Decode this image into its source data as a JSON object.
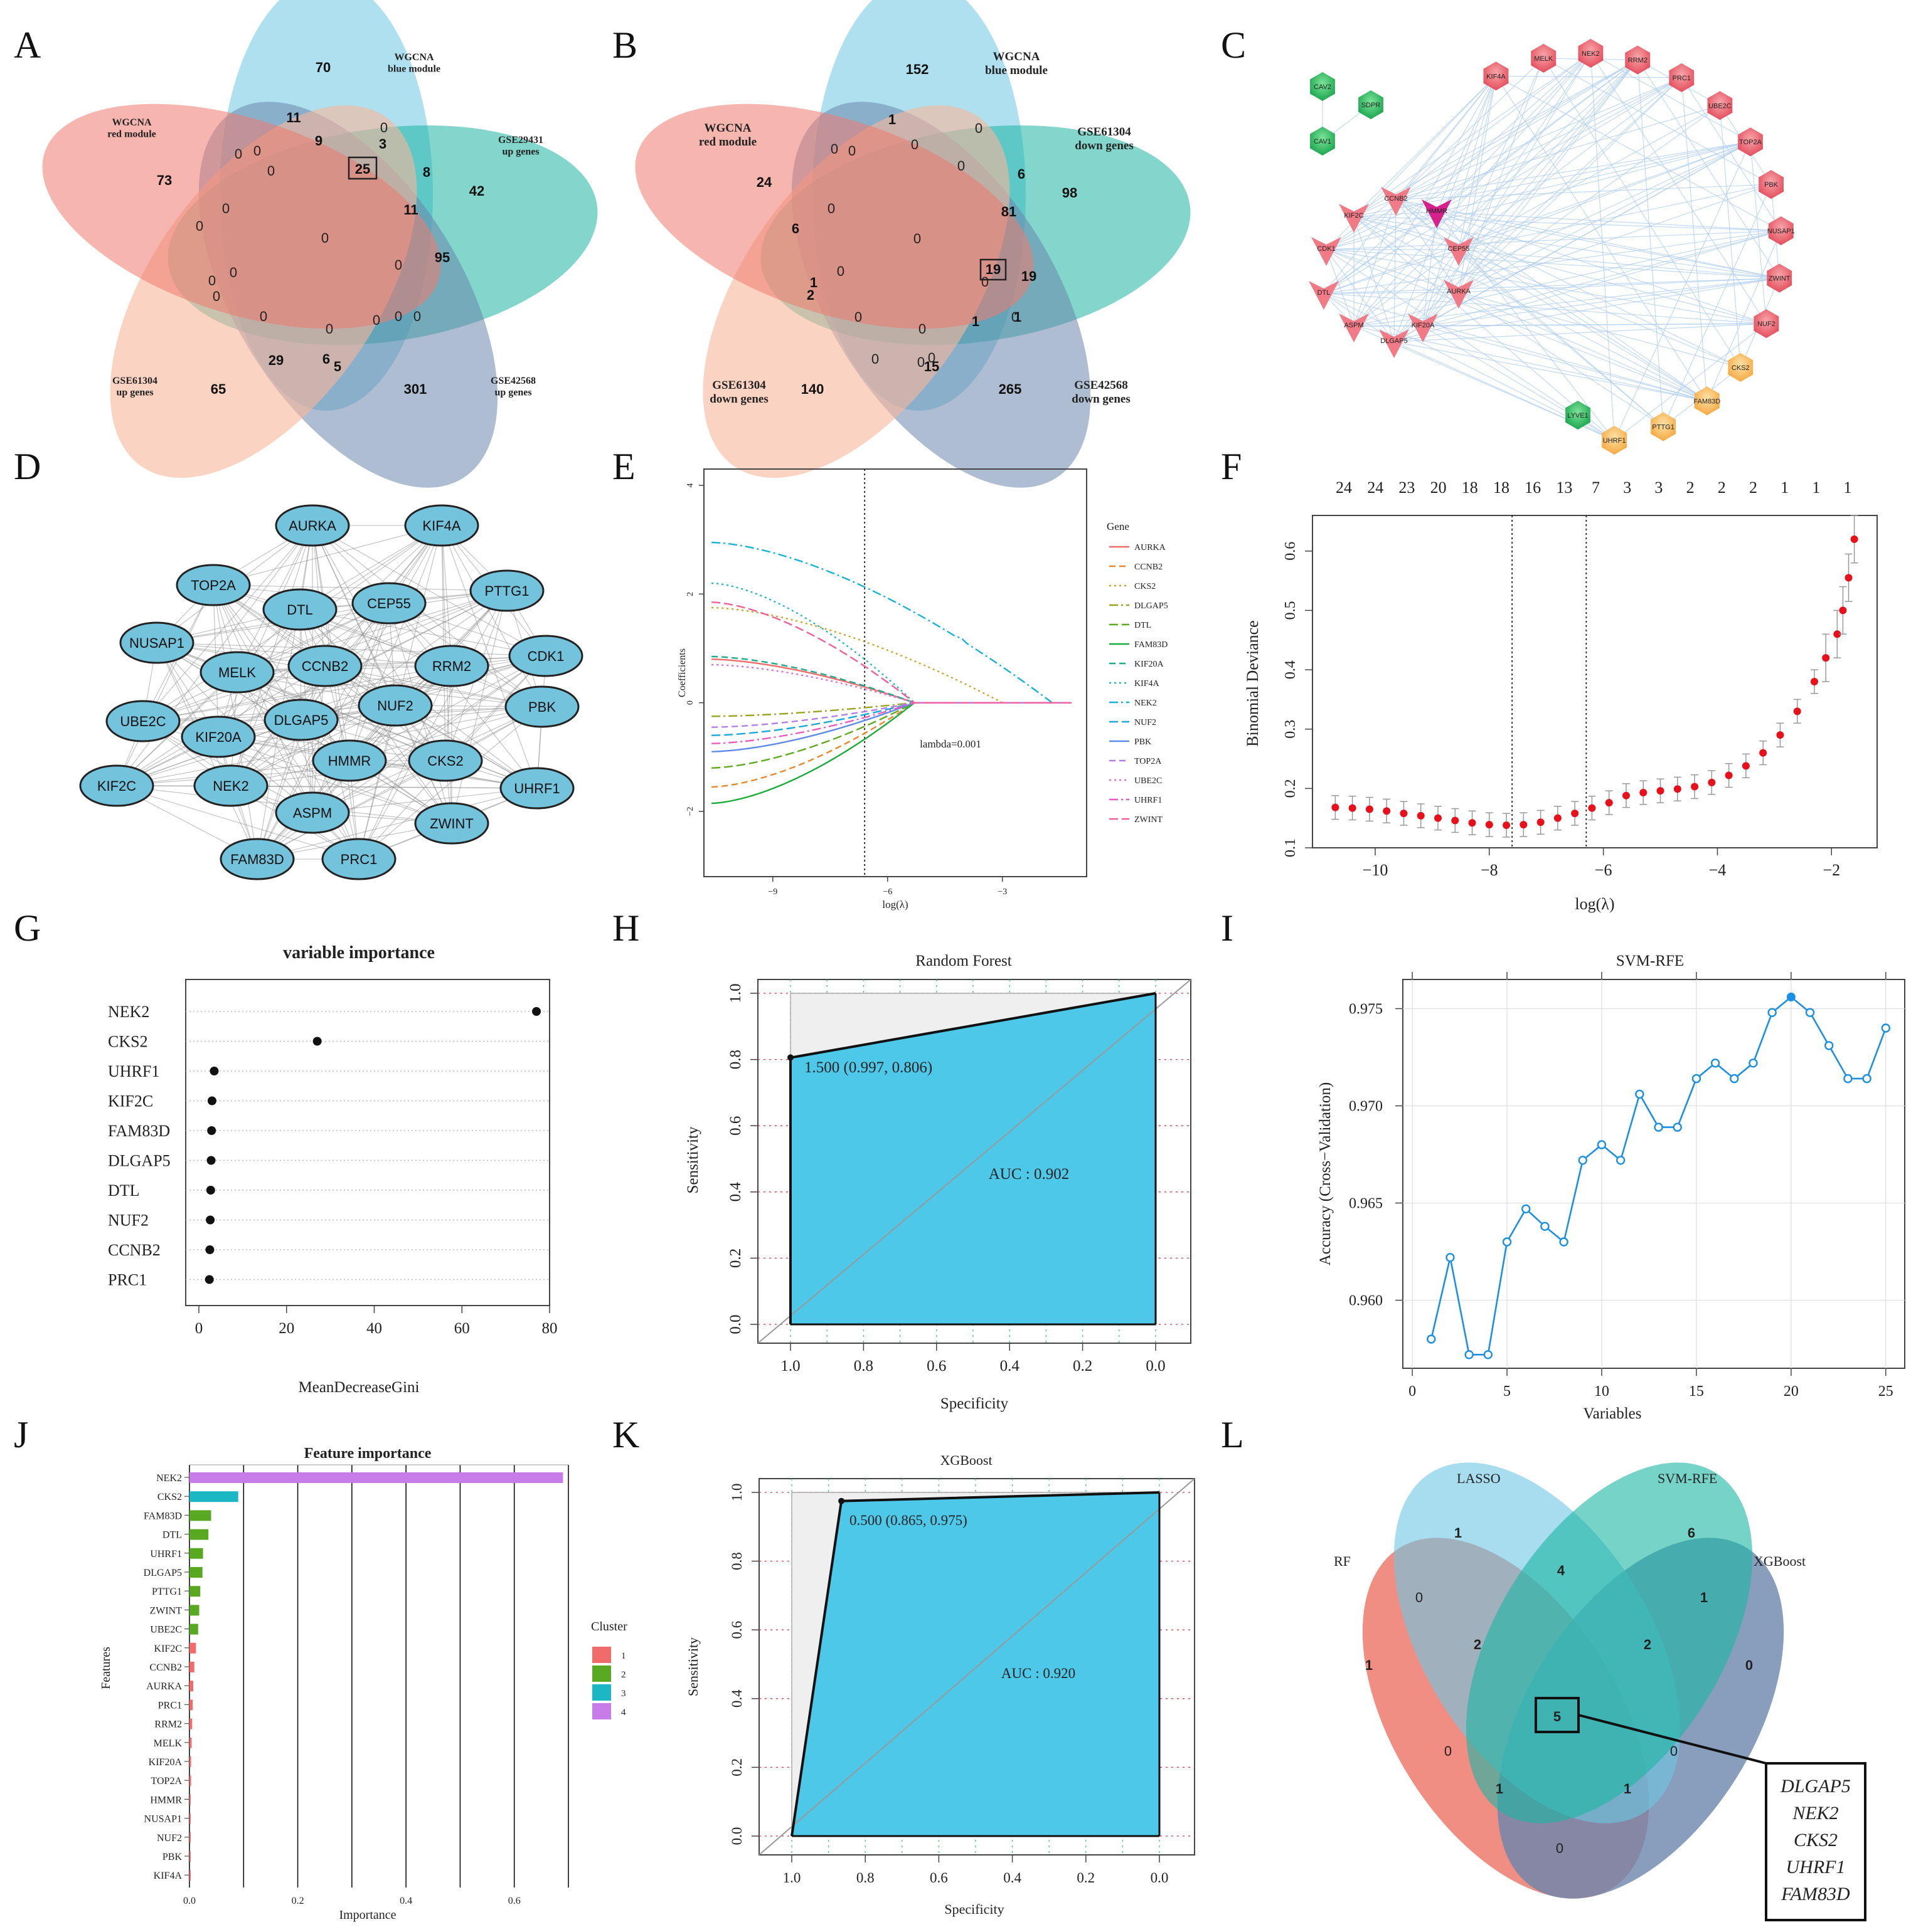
{
  "panel_labels": [
    "A",
    "B",
    "C",
    "D",
    "E",
    "F",
    "G",
    "H",
    "I",
    "J",
    "K",
    "L"
  ],
  "venn_A": {
    "sets": [
      "WGCNA\nblue module",
      "GSE29431\nup genes",
      "GSE42568\nup genes",
      "GSE61304\nup genes",
      "WGCNA\nred module"
    ],
    "colors": [
      "#6cc7e3",
      "#1bb5a3",
      "#6b86ad",
      "#f8b59a",
      "#ee7a6e"
    ],
    "numbers": [
      {
        "v": "70",
        "b": true
      },
      {
        "v": "11",
        "b": true
      },
      {
        "v": "9",
        "b": true
      },
      {
        "v": "25",
        "b": true
      },
      {
        "v": "3",
        "b": true
      },
      {
        "v": "8",
        "b": true
      },
      {
        "v": "42",
        "b": true
      },
      {
        "v": "11",
        "b": true
      },
      {
        "v": "95",
        "b": true
      },
      {
        "v": "301",
        "b": true
      },
      {
        "v": "5",
        "b": true
      },
      {
        "v": "6",
        "b": true
      },
      {
        "v": "29",
        "b": true
      },
      {
        "v": "65",
        "b": true
      },
      {
        "v": "73",
        "b": true
      },
      {
        "v": "0",
        "b": false
      },
      {
        "v": "0",
        "b": false
      },
      {
        "v": "0",
        "b": false
      },
      {
        "v": "0",
        "b": false
      },
      {
        "v": "0",
        "b": false
      },
      {
        "v": "0",
        "b": false
      },
      {
        "v": "0",
        "b": false
      },
      {
        "v": "0",
        "b": false
      },
      {
        "v": "0",
        "b": false
      },
      {
        "v": "0",
        "b": false
      },
      {
        "v": "0",
        "b": false
      },
      {
        "v": "0",
        "b": false
      },
      {
        "v": "0",
        "b": false
      },
      {
        "v": "0",
        "b": false
      },
      {
        "v": "0",
        "b": false
      },
      {
        "v": "0",
        "b": false
      }
    ]
  },
  "venn_B": {
    "sets": [
      "WGCNA\nblue module",
      "GSE61304\ndown genes",
      "GSE42568\ndown genes",
      "GSE61304\ndown genes",
      "WGCNA\nred module"
    ],
    "numbers": [
      {
        "v": "152",
        "b": true
      },
      {
        "v": "1",
        "b": true
      },
      {
        "v": "6",
        "b": true
      },
      {
        "v": "98",
        "b": true
      },
      {
        "v": "81",
        "b": true
      },
      {
        "v": "19",
        "b": true
      },
      {
        "v": "19",
        "b": true
      },
      {
        "v": "265",
        "b": true
      },
      {
        "v": "1",
        "b": true
      },
      {
        "v": "1",
        "b": true
      },
      {
        "v": "15",
        "b": true
      },
      {
        "v": "140",
        "b": true
      },
      {
        "v": "2",
        "b": true
      },
      {
        "v": "1",
        "b": true
      },
      {
        "v": "6",
        "b": true
      },
      {
        "v": "24",
        "b": true
      },
      {
        "v": "0",
        "b": false
      },
      {
        "v": "0",
        "b": false
      },
      {
        "v": "0",
        "b": false
      },
      {
        "v": "0",
        "b": false
      },
      {
        "v": "0",
        "b": false
      },
      {
        "v": "0",
        "b": false
      },
      {
        "v": "0",
        "b": false
      },
      {
        "v": "0",
        "b": false
      },
      {
        "v": "0",
        "b": false
      },
      {
        "v": "0",
        "b": false
      },
      {
        "v": "0",
        "b": false
      },
      {
        "v": "0",
        "b": false
      },
      {
        "v": "0",
        "b": false
      },
      {
        "v": "0",
        "b": false
      },
      {
        "v": "0",
        "b": false
      }
    ]
  },
  "network_C": {
    "green": [
      "CAV2",
      "SDPR",
      "CAV1",
      "LYVE1"
    ],
    "circle": [
      "KIF4A",
      "MELK",
      "NEK2",
      "RRM2",
      "PRC1",
      "UBE2C",
      "TOP2A",
      "PBK",
      "NUSAP1",
      "ZWINT",
      "NUF2",
      "CKS2",
      "FAM83D",
      "PTTG1",
      "UHRF1"
    ],
    "arrows": [
      "CCNB2",
      "HMMR",
      "KIF2C",
      "CEP55",
      "CDK1",
      "AURKA",
      "DTL",
      "ASPM",
      "KIF20A",
      "DLGAP5"
    ]
  },
  "network_D": {
    "nodes": [
      "AURKA",
      "KIF4A",
      "TOP2A",
      "DTL",
      "CEP55",
      "PTTG1",
      "NUSAP1",
      "CDK1",
      "MELK",
      "CCNB2",
      "RRM2",
      "NUF2",
      "PBK",
      "UBE2C",
      "KIF20A",
      "DLGAP5",
      "KIF2C",
      "NEK2",
      "HMMR",
      "CKS2",
      "UHRF1",
      "ASPM",
      "ZWINT",
      "FAM83D",
      "PRC1"
    ]
  },
  "chart_data": [
    {
      "panel": "E",
      "type": "line",
      "xlabel": "log(λ)",
      "ylabel": "Coefficients",
      "xticks": [
        "-9",
        "-6",
        "-3"
      ],
      "yticks": [
        "-2",
        "0",
        "2",
        "4"
      ],
      "xlim": [
        -10.8,
        -0.8
      ],
      "ylim": [
        -3.2,
        4.3
      ],
      "annotation": "lambda=0.001",
      "vline": -6.6,
      "legend_title": "Gene",
      "series": [
        {
          "name": "AURKA",
          "start": 0.8,
          "color": "#f06b6b",
          "dash": ""
        },
        {
          "name": "CCNB2",
          "start": -1.55,
          "color": "#e8882a",
          "dash": "10,6"
        },
        {
          "name": "CKS2",
          "start": 1.75,
          "color": "#c9a427",
          "dash": "3,5"
        },
        {
          "name": "DLGAP5",
          "start": -0.25,
          "color": "#9aa321",
          "dash": "14,5,3,5"
        },
        {
          "name": "DTL",
          "start": -1.2,
          "color": "#5faa1e",
          "dash": "14,6"
        },
        {
          "name": "FAM83D",
          "start": -1.85,
          "color": "#1aad3c",
          "dash": ""
        },
        {
          "name": "KIF20A",
          "start": 0.85,
          "color": "#1dab8a",
          "dash": "10,6"
        },
        {
          "name": "KIF4A",
          "start": 2.2,
          "color": "#1fb7c2",
          "dash": "3,5"
        },
        {
          "name": "NEK2",
          "start": 2.95,
          "color": "#16b3d6",
          "dash": "14,5,3,5"
        },
        {
          "name": "NUF2",
          "start": -0.6,
          "color": "#19a8d9",
          "dash": "14,6"
        },
        {
          "name": "PBK",
          "start": -0.9,
          "color": "#5f8ae6",
          "dash": ""
        },
        {
          "name": "TOP2A",
          "start": -0.45,
          "color": "#b57ee6",
          "dash": "10,6"
        },
        {
          "name": "UBE2C",
          "start": 0.7,
          "color": "#de6cd9",
          "dash": "3,5"
        },
        {
          "name": "UHRF1",
          "start": -0.75,
          "color": "#ec5cbd",
          "dash": "14,5,3,5"
        },
        {
          "name": "ZWINT",
          "start": 1.85,
          "color": "#f0609a",
          "dash": "14,6"
        }
      ]
    },
    {
      "panel": "F",
      "type": "scatter",
      "xlabel": "log(λ)",
      "ylabel": "Binomial Deviance",
      "xticks": [
        "−10",
        "−8",
        "−6",
        "−4",
        "−2"
      ],
      "yticks": [
        "0.1",
        "0.2",
        "0.3",
        "0.4",
        "0.5",
        "0.6"
      ],
      "top_ticks": [
        "24",
        "24",
        "23",
        "20",
        "18",
        "18",
        "16",
        "13",
        "7",
        "3",
        "3",
        "2",
        "2",
        "2",
        "1",
        "1",
        "1"
      ],
      "xlim": [
        -11.1,
        -1.2
      ],
      "ylim": [
        0.1,
        0.66
      ],
      "vlines": [
        -7.6,
        -6.3
      ],
      "x": [
        -10.7,
        -10.4,
        -10.1,
        -9.8,
        -9.5,
        -9.2,
        -8.9,
        -8.6,
        -8.3,
        -8.0,
        -7.7,
        -7.4,
        -7.1,
        -6.8,
        -6.5,
        -6.2,
        -5.9,
        -5.6,
        -5.3,
        -5.0,
        -4.7,
        -4.4,
        -4.1,
        -3.8,
        -3.5,
        -3.2,
        -2.9,
        -2.6,
        -2.3,
        -2.1,
        -1.9,
        -1.8,
        -1.7,
        -1.6
      ],
      "y": [
        0.168,
        0.167,
        0.165,
        0.162,
        0.158,
        0.154,
        0.15,
        0.146,
        0.142,
        0.139,
        0.138,
        0.139,
        0.143,
        0.15,
        0.158,
        0.167,
        0.176,
        0.188,
        0.193,
        0.196,
        0.199,
        0.203,
        0.21,
        0.222,
        0.238,
        0.26,
        0.29,
        0.33,
        0.38,
        0.42,
        0.46,
        0.5,
        0.555,
        0.62
      ]
    },
    {
      "panel": "G",
      "type": "scatter",
      "title": "variable importance",
      "xlabel": "MeanDecreaseGini",
      "xticks": [
        "0",
        "20",
        "40",
        "60",
        "80"
      ],
      "xlim": [
        -3,
        80
      ],
      "categories": [
        "NEK2",
        "CKS2",
        "UHRF1",
        "KIF2C",
        "FAM83D",
        "DLGAP5",
        "DTL",
        "NUF2",
        "CCNB2",
        "PRC1"
      ],
      "values": [
        77,
        27,
        3.5,
        3.0,
        2.9,
        2.8,
        2.7,
        2.6,
        2.5,
        2.4
      ]
    },
    {
      "panel": "H",
      "type": "line",
      "title": "Random Forest",
      "xlabel": "Specificity",
      "ylabel": "Sensitivity",
      "xticks": [
        "1.0",
        "0.8",
        "0.6",
        "0.4",
        "0.2",
        "0.0"
      ],
      "yticks": [
        "0.0",
        "0.2",
        "0.4",
        "0.6",
        "0.8",
        "1.0"
      ],
      "roc": [
        [
          1.0,
          0.0
        ],
        [
          1.0,
          0.806
        ],
        [
          0.997,
          0.806
        ],
        [
          0.0,
          1.0
        ]
      ],
      "threshold_label": "1.500 (0.997, 0.806)",
      "auc_label": "AUC : 0.902"
    },
    {
      "panel": "I",
      "type": "line",
      "title": "SVM-RFE",
      "xlabel": "Variables",
      "ylabel": "Accuracy (Cross−Validation)",
      "xticks": [
        "0",
        "5",
        "10",
        "15",
        "20",
        "25"
      ],
      "yticks": [
        "0.960",
        "0.965",
        "0.970",
        "0.975"
      ],
      "xlim": [
        -0.5,
        26
      ],
      "ylim": [
        0.9565,
        0.9765
      ],
      "x": [
        1,
        2,
        3,
        4,
        5,
        6,
        7,
        8,
        9,
        10,
        11,
        12,
        13,
        14,
        15,
        16,
        17,
        18,
        19,
        20,
        21,
        22,
        23,
        24,
        25
      ],
      "y": [
        0.958,
        0.9622,
        0.9572,
        0.9572,
        0.963,
        0.9647,
        0.9638,
        0.963,
        0.9672,
        0.968,
        0.9672,
        0.9706,
        0.9689,
        0.9689,
        0.9714,
        0.9722,
        0.9714,
        0.9722,
        0.9748,
        0.9756,
        0.9748,
        0.9731,
        0.9714,
        0.9714,
        0.974
      ],
      "highlight_x": 20
    },
    {
      "panel": "J",
      "type": "bar",
      "title": "Feature importance",
      "xlabel": "Importance",
      "ylabel": "Features",
      "xticks": [
        "0.0",
        "0.2",
        "0.4",
        "0.6"
      ],
      "xlim": [
        0,
        0.7
      ],
      "categories": [
        "NEK2",
        "CKS2",
        "FAM83D",
        "DTL",
        "UHRF1",
        "DLGAP5",
        "PTTG1",
        "ZWINT",
        "UBE2C",
        "KIF2C",
        "CCNB2",
        "AURKA",
        "PRC1",
        "RRM2",
        "MELK",
        "KIF20A",
        "TOP2A",
        "HMMR",
        "NUSAP1",
        "NUF2",
        "PBK",
        "KIF4A"
      ],
      "values": [
        0.69,
        0.09,
        0.04,
        0.035,
        0.025,
        0.024,
        0.02,
        0.018,
        0.016,
        0.012,
        0.009,
        0.007,
        0.006,
        0.005,
        0.004,
        0.003,
        0.003,
        0.002,
        0.002,
        0.002,
        0.001,
        0.001
      ],
      "cluster": [
        4,
        3,
        2,
        2,
        2,
        2,
        2,
        2,
        2,
        1,
        1,
        1,
        1,
        1,
        1,
        1,
        1,
        1,
        1,
        1,
        1,
        1
      ],
      "legend_title": "Cluster",
      "legend_items": [
        "1",
        "2",
        "3",
        "4"
      ],
      "legend_colors": [
        "#f26b6b",
        "#58a821",
        "#1cb7c4",
        "#c77ce9"
      ]
    },
    {
      "panel": "K",
      "type": "line",
      "title": "XGBoost",
      "xlabel": "Specificity",
      "ylabel": "Sensitivity",
      "xticks": [
        "1.0",
        "0.8",
        "0.6",
        "0.4",
        "0.2",
        "0.0"
      ],
      "yticks": [
        "0.0",
        "0.2",
        "0.4",
        "0.6",
        "0.8",
        "1.0"
      ],
      "roc": [
        [
          1.0,
          0.0
        ],
        [
          0.865,
          0.975
        ],
        [
          0.0,
          1.0
        ]
      ],
      "threshold_label": "0.500 (0.865, 0.975)",
      "auc_label": "AUC : 0.920"
    }
  ],
  "venn_L": {
    "sets": [
      "RF",
      "LASSO",
      "SVM-RFE",
      "XGBoost"
    ],
    "numbers": [
      "1",
      "0",
      "1",
      "6",
      "4",
      "1",
      "0",
      "2",
      "2",
      "5",
      "0",
      "0",
      "1",
      "1",
      "0"
    ],
    "genes": [
      "DLGAP5",
      "NEK2",
      "CKS2",
      "UHRF1",
      "FAM83D"
    ]
  }
}
